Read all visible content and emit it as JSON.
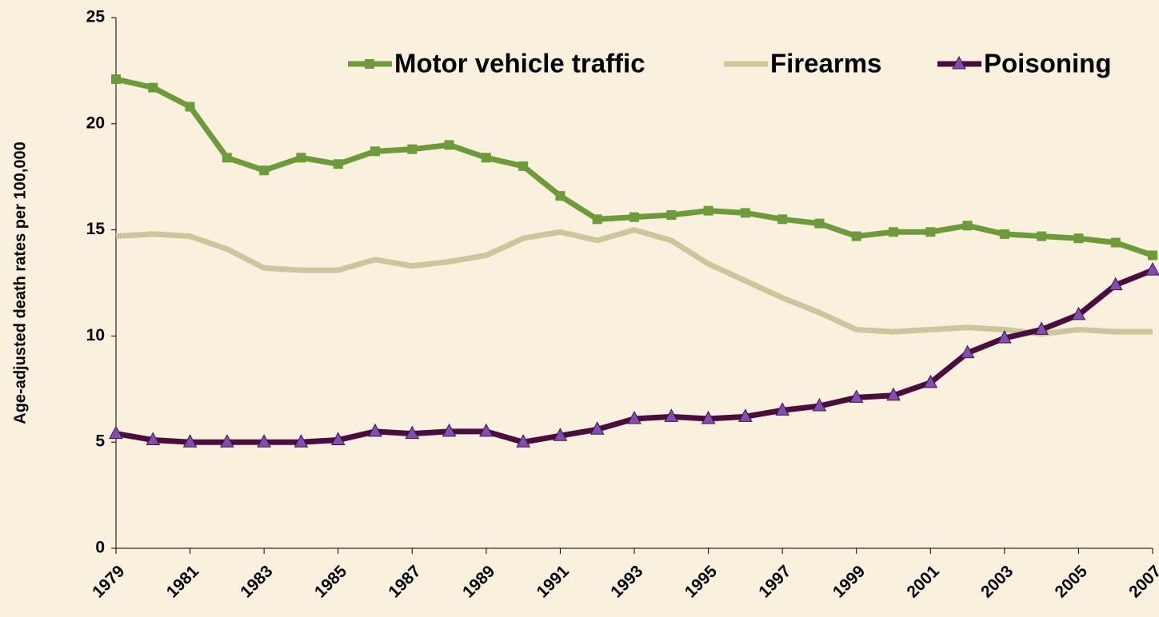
{
  "chart_data": {
    "type": "line",
    "y_label": "Age-adjusted death rates per 100,000",
    "x": [
      1979,
      1980,
      1981,
      1982,
      1983,
      1984,
      1985,
      1986,
      1987,
      1988,
      1989,
      1990,
      1991,
      1992,
      1993,
      1994,
      1995,
      1996,
      1997,
      1998,
      1999,
      2000,
      2001,
      2002,
      2003,
      2004,
      2005,
      2006,
      2007
    ],
    "xlim": [
      1979,
      2007
    ],
    "xticks": [
      1979,
      1981,
      1983,
      1985,
      1987,
      1989,
      1991,
      1993,
      1995,
      1997,
      1999,
      2001,
      2003,
      2005,
      2007
    ],
    "ylim": [
      0,
      25
    ],
    "yticks": [
      0,
      5,
      10,
      15,
      20,
      25
    ],
    "legend": "top",
    "series": [
      {
        "name": "Motor vehicle traffic",
        "color": "#6e9b3a",
        "marker": "square",
        "values": [
          22.1,
          21.7,
          20.8,
          18.4,
          17.8,
          18.4,
          18.1,
          18.7,
          18.8,
          19.0,
          18.4,
          18.0,
          16.6,
          15.5,
          15.6,
          15.7,
          15.9,
          15.8,
          15.5,
          15.3,
          14.7,
          14.9,
          14.9,
          15.2,
          14.8,
          14.7,
          14.6,
          14.4,
          13.8
        ]
      },
      {
        "name": "Firearms",
        "color": "#cbc79c",
        "values": [
          14.7,
          14.8,
          14.7,
          14.1,
          13.2,
          13.1,
          13.1,
          13.6,
          13.3,
          13.5,
          13.8,
          14.6,
          14.9,
          14.5,
          15.0,
          14.5,
          13.4,
          12.6,
          11.8,
          11.1,
          10.3,
          10.2,
          10.3,
          10.4,
          10.3,
          10.1,
          10.3,
          10.2,
          10.2
        ]
      },
      {
        "name": "Poisoning",
        "color": "#4a0e3e",
        "marker": "triangle",
        "marker_color": "#7e4fb3",
        "values": [
          5.4,
          5.1,
          5.0,
          5.0,
          5.0,
          5.0,
          5.1,
          5.5,
          5.4,
          5.5,
          5.5,
          5.0,
          5.3,
          5.6,
          6.1,
          6.2,
          6.1,
          6.2,
          6.5,
          6.7,
          7.1,
          7.2,
          7.8,
          9.2,
          9.9,
          10.3,
          11.0,
          12.4,
          13.1
        ]
      }
    ]
  }
}
